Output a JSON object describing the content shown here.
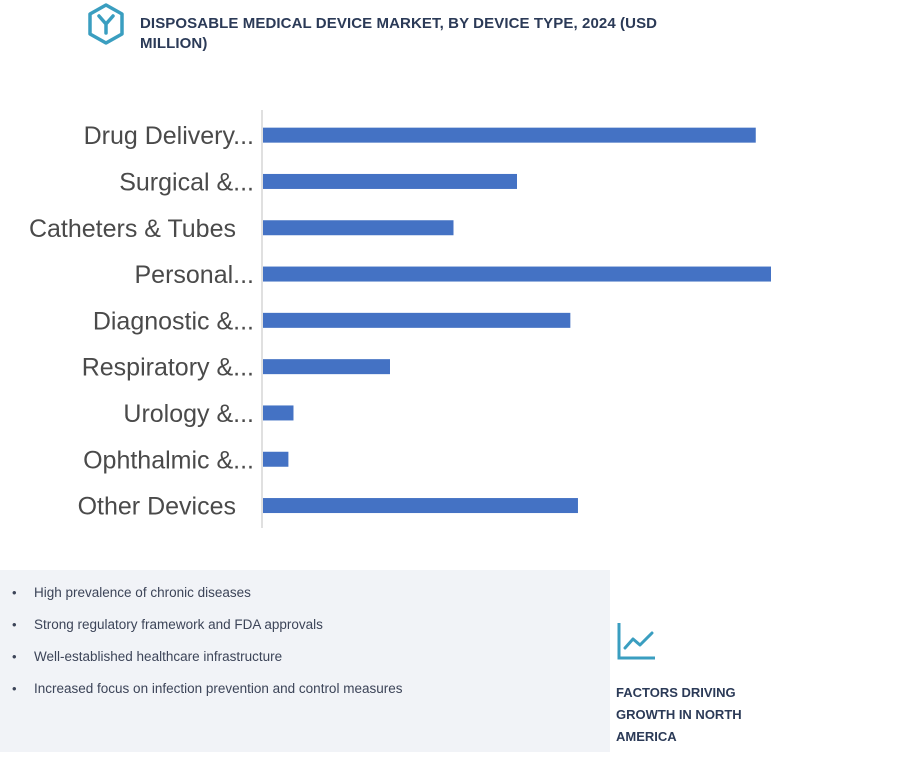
{
  "title": "DISPOSABLE MEDICAL DEVICE MARKET, BY DEVICE TYPE, 2024 (USD MILLION)",
  "logo_icon": "hexagon-y-logo-icon",
  "colors": {
    "bar": "#4472c4",
    "title": "#2b3a57",
    "panel": "#f1f3f7"
  },
  "chart_data": {
    "type": "bar",
    "orientation": "horizontal",
    "categories": [
      "Drug Delivery...",
      "Surgical &...",
      "Catheters & Tubes",
      "Personal...",
      "Diagnostic &...",
      "Respiratory &...",
      "Urology &...",
      "Ophthalmic &...",
      "Other Devices"
    ],
    "values": [
      97,
      50,
      37.5,
      100,
      60.5,
      25,
      6,
      5,
      62
    ],
    "xlabel": "",
    "ylabel": "",
    "xlim": [
      0,
      100
    ],
    "grid": false
  },
  "drivers": [
    "High prevalence of chronic diseases",
    "Strong regulatory framework and FDA approvals",
    "Well-established healthcare infrastructure",
    "Increased focus on infection prevention and control measures"
  ],
  "bullet": "•",
  "factors_icon": "line-chart-trend-icon",
  "factors_label": "FACTORS DRIVING GROWTH IN NORTH AMERICA"
}
